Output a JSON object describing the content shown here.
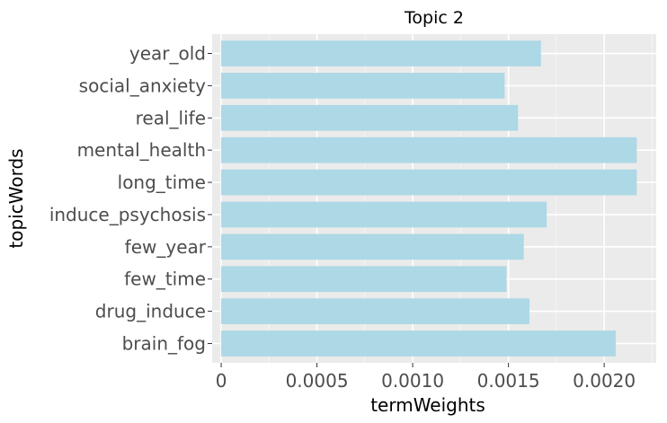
{
  "chart_data": {
    "type": "bar",
    "orientation": "horizontal",
    "title": "Topic 2",
    "xlabel": "termWeights",
    "ylabel": "topicWords",
    "categories": [
      "year_old",
      "social_anxiety",
      "real_life",
      "mental_health",
      "long_time",
      "induce_psychosis",
      "few_year",
      "few_time",
      "drug_induce",
      "brain_fog"
    ],
    "values": [
      0.00167,
      0.00148,
      0.00155,
      0.00217,
      0.00217,
      0.0017,
      0.00158,
      0.00149,
      0.00161,
      0.00206
    ],
    "xlim": [
      -4.72e-05,
      0.0022716
    ],
    "xticks": [
      0,
      0.0005,
      0.001,
      0.0015,
      0.002
    ],
    "xtick_labels": [
      "0",
      "0.0005",
      "0.0010",
      "0.0015",
      "0.0020"
    ],
    "grid": true,
    "bar_color": "#add8e6",
    "panel_color": "#ebebeb",
    "grid_color": "#ffffff"
  }
}
